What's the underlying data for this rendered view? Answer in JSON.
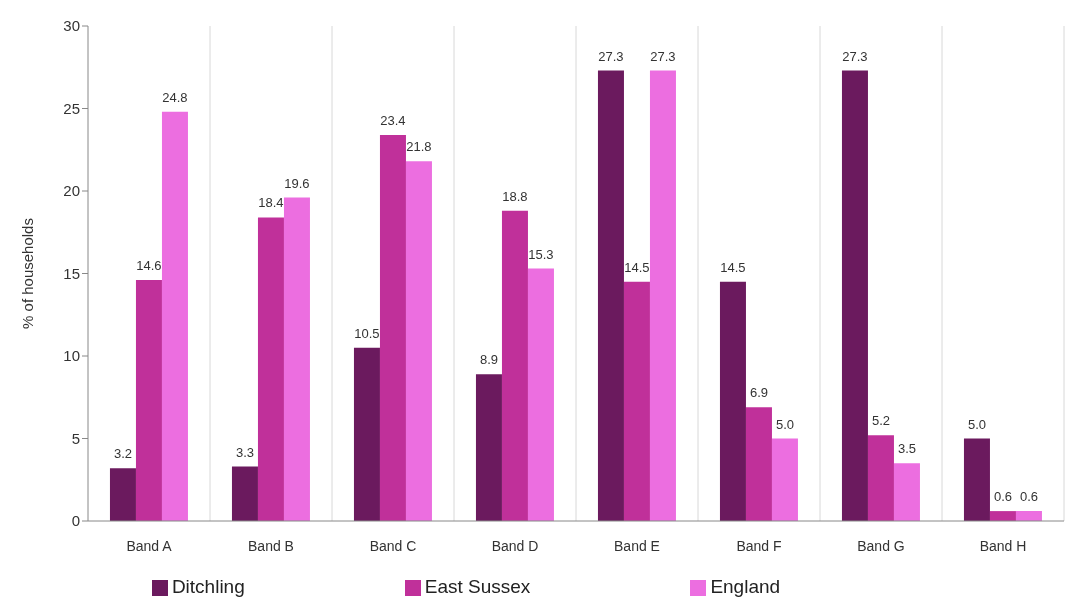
{
  "chart_data": {
    "type": "bar",
    "ylabel": "% of households",
    "categories": [
      "Band A",
      "Band B",
      "Band C",
      "Band D",
      "Band E",
      "Band F",
      "Band G",
      "Band H"
    ],
    "series": [
      {
        "name": "Ditchling",
        "color": "#6b1a5e",
        "values": [
          3.2,
          3.3,
          10.5,
          8.9,
          27.3,
          14.5,
          27.3,
          5.0
        ],
        "value_labels": [
          "3.2",
          "3.3",
          "10.5",
          "8.9",
          "27.3",
          "14.5",
          "27.3",
          "5.0"
        ]
      },
      {
        "name": "East Sussex",
        "color": "#c0309a",
        "values": [
          14.6,
          18.4,
          23.4,
          18.8,
          14.5,
          6.9,
          5.2,
          0.6
        ],
        "value_labels": [
          "14.6",
          "18.4",
          "23.4",
          "18.8",
          "14.5",
          "6.9",
          "5.2",
          "0.6"
        ]
      },
      {
        "name": "England",
        "color": "#ec6ee0",
        "values": [
          24.8,
          19.6,
          21.8,
          15.3,
          27.3,
          5.0,
          3.5,
          0.6
        ],
        "value_labels": [
          "24.8",
          "19.6",
          "21.8",
          "15.3",
          "27.3",
          "5.0",
          "3.5",
          "0.6"
        ]
      }
    ],
    "ylim": [
      0,
      30
    ],
    "yticks": [
      0,
      5,
      10,
      15,
      20,
      25,
      30
    ],
    "grid": "x",
    "legend": "bottom"
  }
}
